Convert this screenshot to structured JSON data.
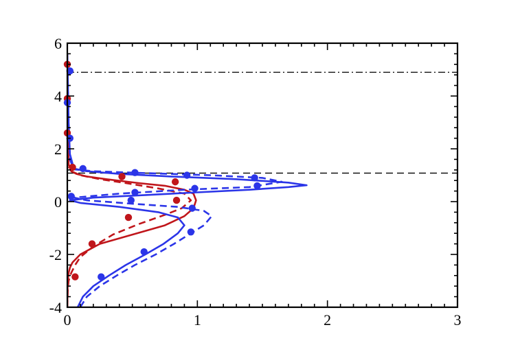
{
  "chart_data": {
    "type": "line",
    "title": "",
    "xlabel": "",
    "ylabel": "",
    "xlim": [
      0,
      3
    ],
    "ylim": [
      -4,
      6
    ],
    "x_ticks": [
      0,
      1,
      2,
      3
    ],
    "x_tick_labels": [
      "0",
      "1",
      "2",
      "3"
    ],
    "y_ticks": [
      -4,
      -2,
      0,
      2,
      4,
      6
    ],
    "y_tick_labels": [
      "-4",
      "-2",
      "0",
      "2",
      "4",
      "6"
    ],
    "grid": false,
    "legend": "none",
    "reference_lines": [
      {
        "style": "dash-dot",
        "y": 4.9,
        "color": "#000000"
      },
      {
        "style": "dashed",
        "y": 1.08,
        "color": "#000000"
      }
    ],
    "series": [
      {
        "style": "solid",
        "color": "#c0161b",
        "x": [
          0.0,
          0.001,
          0.002,
          0.004,
          0.01,
          0.02,
          0.04,
          0.1,
          0.25,
          0.5,
          0.75,
          0.9,
          0.97,
          0.99,
          0.97,
          0.9,
          0.75,
          0.55,
          0.3,
          0.15,
          0.07,
          0.03,
          0.01,
          0.0
        ],
        "y": [
          -4.0,
          -3.6,
          -3.3,
          -3.0,
          -2.7,
          -2.5,
          -2.3,
          -2.0,
          -1.6,
          -1.25,
          -0.9,
          -0.55,
          -0.25,
          0.05,
          0.3,
          0.45,
          0.6,
          0.7,
          0.85,
          0.95,
          1.05,
          1.15,
          1.4,
          5.6
        ]
      },
      {
        "style": "dashed",
        "color": "#c0161b",
        "x": [
          0.0,
          0.004,
          0.01,
          0.03,
          0.06,
          0.1,
          0.2,
          0.35,
          0.55,
          0.75,
          0.88,
          0.95,
          0.9,
          0.7,
          0.45,
          0.25,
          0.1,
          0.03,
          0.0
        ],
        "y": [
          -4.0,
          -3.3,
          -3.0,
          -2.7,
          -2.4,
          -2.1,
          -1.7,
          -1.25,
          -0.85,
          -0.5,
          -0.25,
          0.05,
          0.3,
          0.5,
          0.7,
          0.85,
          1.0,
          1.15,
          1.3
        ]
      },
      {
        "style": "solid",
        "color": "#2b35e8",
        "x": [
          0.08,
          0.12,
          0.2,
          0.32,
          0.45,
          0.6,
          0.74,
          0.85,
          0.9,
          0.85,
          0.7,
          0.4,
          0.1,
          0.02,
          0.2,
          0.6,
          1.0,
          1.4,
          1.7,
          1.84,
          1.7,
          1.3,
          0.8,
          0.4,
          0.15,
          0.05,
          0.02,
          0.01,
          0.0
        ],
        "y": [
          -4.0,
          -3.6,
          -3.2,
          -2.8,
          -2.4,
          -2.0,
          -1.6,
          -1.2,
          -0.9,
          -0.6,
          -0.4,
          -0.2,
          -0.05,
          0.05,
          0.15,
          0.25,
          0.35,
          0.45,
          0.55,
          0.62,
          0.72,
          0.85,
          0.95,
          1.05,
          1.15,
          1.25,
          1.8,
          3.0,
          5.6
        ]
      },
      {
        "style": "dashed",
        "color": "#2b35e8",
        "x": [
          0.1,
          0.15,
          0.25,
          0.38,
          0.52,
          0.68,
          0.82,
          0.95,
          1.05,
          1.11,
          1.05,
          0.85,
          0.5,
          0.15,
          0.05,
          0.4,
          0.9,
          1.4,
          1.65,
          1.5,
          1.1,
          0.6,
          0.2,
          0.05,
          0.02,
          0.01,
          0.0
        ],
        "y": [
          -4.0,
          -3.6,
          -3.2,
          -2.8,
          -2.4,
          -2.0,
          -1.6,
          -1.2,
          -0.9,
          -0.55,
          -0.35,
          -0.2,
          -0.08,
          0.05,
          0.15,
          0.3,
          0.45,
          0.55,
          0.75,
          0.9,
          1.0,
          1.08,
          1.15,
          1.22,
          1.6,
          3.0,
          5.6
        ]
      }
    ],
    "scatter_series": [
      {
        "color": "#c0161b",
        "x": [
          0.0,
          0.0,
          0.0,
          0.04,
          0.06,
          0.19,
          0.47,
          0.42,
          0.83,
          0.84
        ],
        "y": [
          5.2,
          3.9,
          2.6,
          1.3,
          -2.85,
          -1.6,
          -0.6,
          0.95,
          0.75,
          0.05
        ]
      },
      {
        "color": "#2b35e8",
        "x": [
          0.02,
          0.0,
          0.02,
          0.12,
          0.52,
          0.92,
          1.44,
          0.52,
          0.98,
          1.46,
          0.03,
          0.49,
          0.96,
          0.95,
          0.59,
          0.26
        ],
        "y": [
          4.95,
          3.75,
          2.4,
          1.25,
          1.1,
          1.0,
          0.9,
          0.35,
          0.5,
          0.6,
          0.2,
          0.05,
          -0.25,
          -1.15,
          -1.9,
          -2.85
        ]
      }
    ]
  }
}
